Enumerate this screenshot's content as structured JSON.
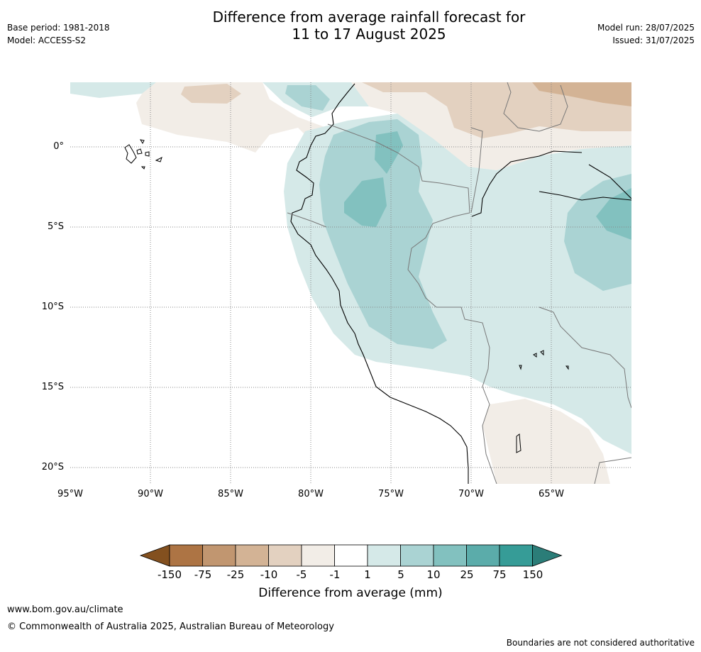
{
  "title": {
    "line1": "Difference from average rainfall forecast for",
    "line2": "11 to 17 August 2025"
  },
  "meta_left": {
    "base_period": "Base period: 1981-2018",
    "model": "Model: ACCESS-S2"
  },
  "meta_right": {
    "model_run": "Model run: 28/07/2025",
    "issued": "Issued: 31/07/2025"
  },
  "map": {
    "lon_range": [
      -95,
      -60
    ],
    "lat_range": [
      -21,
      4
    ],
    "lat_ticks": [
      "0°",
      "5°S",
      "10°S",
      "15°S",
      "20°S"
    ],
    "lon_ticks": [
      "95°W",
      "90°W",
      "85°W",
      "80°W",
      "75°W",
      "70°W",
      "65°W"
    ],
    "gridlines": "dotted"
  },
  "colorbar": {
    "title": "Difference from average (mm)",
    "labels": [
      "-150",
      "-75",
      "-25",
      "-10",
      "-5",
      "-1",
      "1",
      "5",
      "10",
      "25",
      "75",
      "150"
    ],
    "colors": [
      "#83501f",
      "#ad7444",
      "#c19670",
      "#d3b395",
      "#e3d1c0",
      "#f2ede7",
      "#ffffff",
      "#d5e9e8",
      "#aad3d3",
      "#82c1bf",
      "#5bacaa",
      "#369c97",
      "#2b7d78"
    ]
  },
  "footer": {
    "url": "www.bom.gov.au/climate",
    "copyright": "© Commonwealth of Australia 2025, Australian Bureau of Meteorology",
    "disclaimer": "Boundaries are not considered authoritative"
  }
}
